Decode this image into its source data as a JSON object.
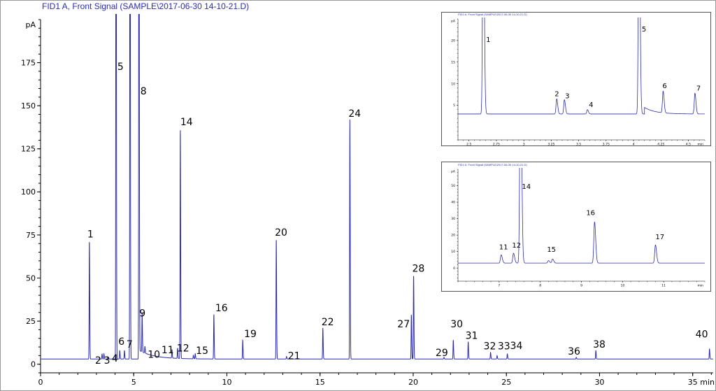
{
  "chart_data": [
    {
      "type": "line",
      "title": "FID1 A, Front Signal (SAMPLE\\2017-06-30 14-10-21.D)",
      "xlabel": "min",
      "ylabel": "pA",
      "xlim": [
        0,
        36.1
      ],
      "ylim": [
        -5,
        200
      ],
      "x_ticks": [
        "0",
        "5",
        "10",
        "15",
        "20",
        "25",
        "30",
        "35"
      ],
      "y_ticks": [
        "0",
        "25",
        "50",
        "75",
        "100",
        "125",
        "150",
        "175"
      ],
      "grid": false,
      "line_color": "#2b2bb0",
      "baseline": 3,
      "peaks": [
        {
          "label": "1",
          "rt": 2.62,
          "height": 72
        },
        {
          "label": "2",
          "rt": 3.3,
          "height": 6
        },
        {
          "label": "3",
          "rt": 3.4,
          "height": 6
        },
        {
          "label": "4",
          "rt": 3.6,
          "height": 4
        },
        {
          "label": "5",
          "rt": 4.05,
          "height": 400
        },
        {
          "label": "6",
          "rt": 4.25,
          "height": 8
        },
        {
          "label": "7",
          "rt": 4.5,
          "height": 8
        },
        {
          "label": "",
          "rt": 4.8,
          "height": 400
        },
        {
          "label": "8",
          "rt": 5.28,
          "height": 400
        },
        {
          "label": "9",
          "rt": 5.45,
          "height": 26
        },
        {
          "label": "10",
          "rt": 5.6,
          "height": 7
        },
        {
          "label": "11",
          "rt": 7.05,
          "height": 8
        },
        {
          "label": "12",
          "rt": 7.35,
          "height": 9
        },
        {
          "label": "14",
          "rt": 7.5,
          "height": 137
        },
        {
          "label": "",
          "rt": 8.2,
          "height": 5
        },
        {
          "label": "15",
          "rt": 8.3,
          "height": 6
        },
        {
          "label": "16",
          "rt": 9.3,
          "height": 29
        },
        {
          "label": "19",
          "rt": 10.85,
          "height": 14
        },
        {
          "label": "20",
          "rt": 12.65,
          "height": 73
        },
        {
          "label": "21",
          "rt": 13.2,
          "height": 4.5
        },
        {
          "label": "22",
          "rt": 15.15,
          "height": 21
        },
        {
          "label": "24",
          "rt": 16.6,
          "height": 142
        },
        {
          "label": "27",
          "rt": 19.9,
          "height": 29
        },
        {
          "label": "28",
          "rt": 20.02,
          "height": 52
        },
        {
          "label": "29",
          "rt": 21.65,
          "height": 4
        },
        {
          "label": "30",
          "rt": 22.15,
          "height": 14
        },
        {
          "label": "31",
          "rt": 22.95,
          "height": 13
        },
        {
          "label": "32",
          "rt": 24.15,
          "height": 7
        },
        {
          "label": "33",
          "rt": 24.5,
          "height": 5
        },
        {
          "label": "34",
          "rt": 25.05,
          "height": 6
        },
        {
          "label": "36",
          "rt": 28.75,
          "height": 4
        },
        {
          "label": "38",
          "rt": 29.8,
          "height": 8
        },
        {
          "label": "40",
          "rt": 35.9,
          "height": 9
        }
      ]
    },
    {
      "type": "line",
      "title": "FID1 A, Front Signal (SAMPLE\\2017-06-30 14-10-21.D)",
      "xlabel": "min",
      "ylabel": "pA",
      "xlim": [
        2.4,
        4.65
      ],
      "ylim": [
        -3,
        25
      ],
      "x_ticks": [
        "2.5",
        "2.75",
        "3",
        "3.25",
        "3.5",
        "3.75",
        "4",
        "4.25",
        "4.5"
      ],
      "y_ticks": [
        "5",
        "10",
        "15",
        "20"
      ],
      "baseline": 3,
      "peaks": [
        {
          "label": "1",
          "rt": 2.63,
          "height": 60
        },
        {
          "label": "2",
          "rt": 3.3,
          "height": 6.5
        },
        {
          "label": "3",
          "rt": 3.37,
          "height": 6.3
        },
        {
          "label": "4",
          "rt": 3.58,
          "height": 4
        },
        {
          "label": "5",
          "rt": 4.05,
          "height": 60
        },
        {
          "label": "6",
          "rt": 4.27,
          "height": 8
        },
        {
          "label": "7",
          "rt": 4.56,
          "height": 7.8
        }
      ]
    },
    {
      "type": "line",
      "title": "FID1 A, Front Signal (SAMPLE\\2017-06-30 14-10-21.D)",
      "xlabel": "min",
      "ylabel": "pA",
      "xlim": [
        6,
        12
      ],
      "ylim": [
        -8,
        60
      ],
      "x_ticks": [
        "7",
        "8",
        "9",
        "10",
        "11"
      ],
      "y_ticks": [
        "0",
        "10",
        "20",
        "30",
        "40",
        "50"
      ],
      "baseline": 3,
      "peaks": [
        {
          "label": "11",
          "rt": 7.05,
          "height": 8
        },
        {
          "label": "12",
          "rt": 7.35,
          "height": 9
        },
        {
          "label": "14",
          "rt": 7.52,
          "height": 140
        },
        {
          "label": "",
          "rt": 8.2,
          "height": 4.5
        },
        {
          "label": "15",
          "rt": 8.3,
          "height": 5.5
        },
        {
          "label": "16",
          "rt": 9.32,
          "height": 28
        },
        {
          "label": "17",
          "rt": 10.8,
          "height": 14
        }
      ]
    }
  ]
}
